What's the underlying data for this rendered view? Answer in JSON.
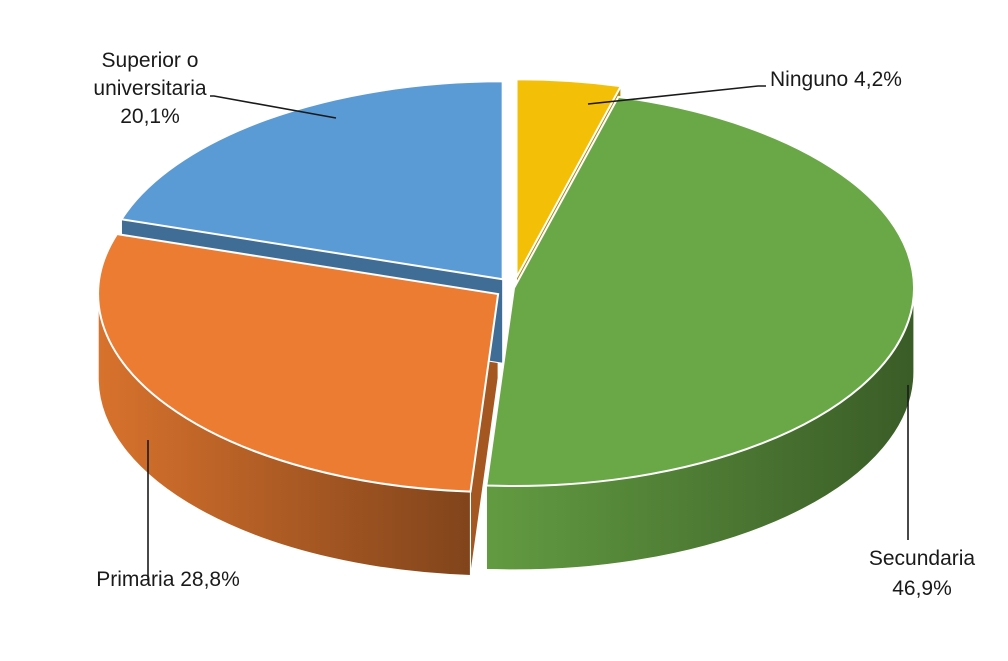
{
  "chart_data": {
    "type": "pie",
    "style": "3d-exploded",
    "title": "",
    "series": [
      {
        "slices": [
          {
            "label": "Ninguno",
            "value": 4.2,
            "value_label": "4,2%",
            "color": "#f4c007",
            "label_lines": [
              "Ninguno 4,2%"
            ]
          },
          {
            "label": "Secundaria",
            "value": 46.9,
            "value_label": "46,9%",
            "color": "#6aa847",
            "label_lines": [
              "Secundaria",
              "46,9%"
            ]
          },
          {
            "label": "Primaria",
            "value": 28.8,
            "value_label": "28,8%",
            "color": "#eb7c31",
            "label_lines": [
              "Primaria 28,8%"
            ]
          },
          {
            "label": "Superior o universitaria",
            "value": 20.1,
            "value_label": "20,1%",
            "color": "#5b9bd5",
            "label_lines": [
              "Superior o",
              "universitaria",
              "20,1%"
            ]
          }
        ]
      }
    ],
    "start_angle_deg": 0,
    "direction": "clockwise",
    "legend": "none",
    "data_labels": "outside-with-leader-lines"
  }
}
